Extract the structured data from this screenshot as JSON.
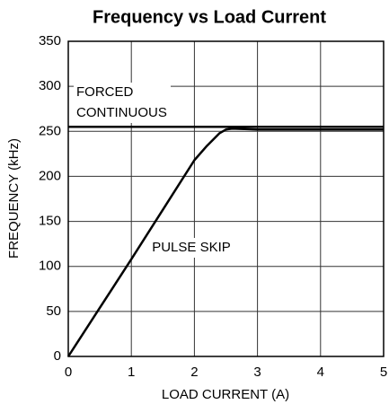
{
  "chart_data": {
    "type": "line",
    "title": "Frequency vs Load Current",
    "xlabel": "LOAD CURRENT (A)",
    "ylabel": "FREQUENCY (kHz)",
    "series": [
      {
        "color": "#000000",
        "x": [
          0,
          5
        ],
        "values": [
          255,
          255
        ]
      },
      {
        "color": "#000000",
        "x": [
          0,
          0.5,
          1,
          1.5,
          2,
          2.2,
          2.4,
          2.5,
          2.6,
          3,
          4,
          5
        ],
        "values": [
          0,
          54,
          108,
          163,
          218,
          234,
          248,
          252,
          253,
          252,
          252,
          252
        ]
      }
    ],
    "annotations": [
      "FORCED",
      "CONTINUOUS",
      "PULSE SKIP"
    ],
    "xlim": [
      0,
      5
    ],
    "xticks": [
      0,
      1,
      2,
      3,
      4,
      5
    ],
    "ylim": [
      0,
      350
    ],
    "yticks": [
      0,
      50,
      100,
      150,
      200,
      250,
      300,
      350
    ],
    "grid": true
  }
}
